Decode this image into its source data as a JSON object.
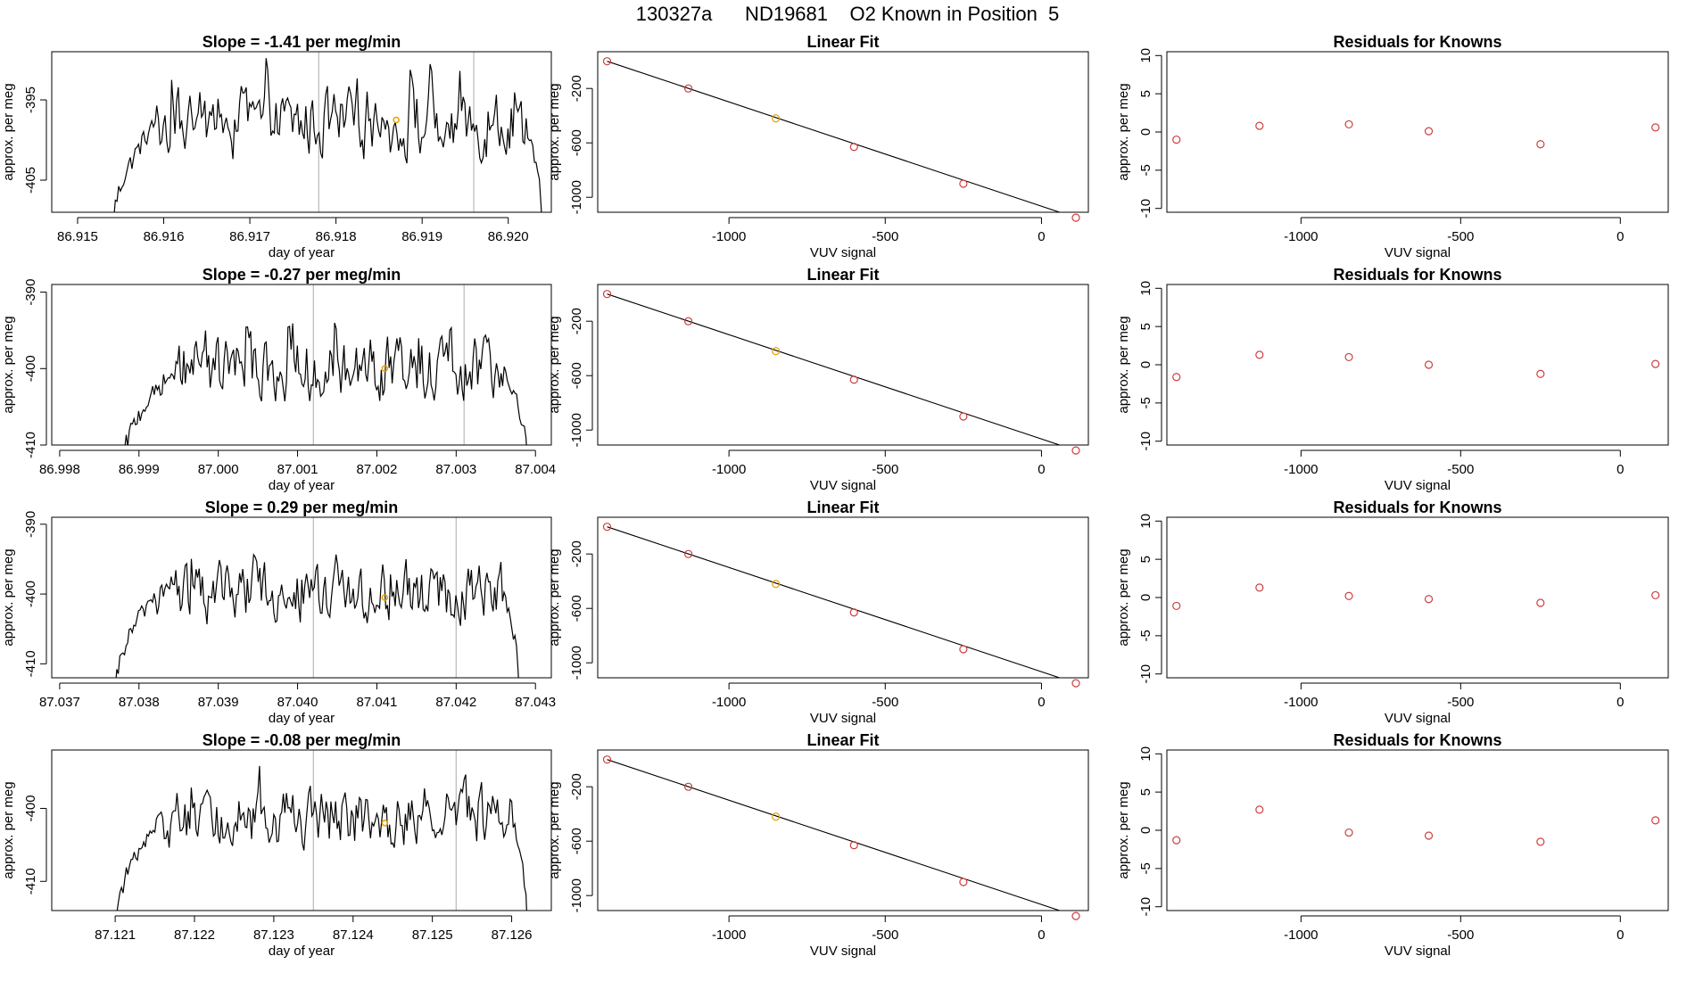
{
  "title": "130327a      ND19681    O2 Known in Position  5",
  "colors": {
    "trace": "#000000",
    "marker_line": "#bfbfbf",
    "current_point": "#e69f00",
    "fit_point": "#cd3e3e",
    "fit_line": "#000000"
  },
  "chart_data": [
    {
      "type": "line",
      "row": 1,
      "title": "Slope =  -1.41  per meg/min",
      "xlabel": "day of year",
      "ylabel": "approx. per meg",
      "xlim": [
        86.9147,
        86.9205
      ],
      "ylim": [
        -409,
        -389
      ],
      "xticks": [
        86.915,
        86.916,
        86.917,
        86.918,
        86.919,
        86.92
      ],
      "xtick_labels": [
        "86.915",
        "86.916",
        "86.917",
        "86.918",
        "86.919",
        "86.920"
      ],
      "yticks": [
        -405,
        -395
      ],
      "ytick_labels": [
        "-405",
        "-395"
      ],
      "x_start": 86.9154,
      "x_end": 86.9204,
      "baseline": -398,
      "plateau_start": 86.9159,
      "plateau_end": 86.9202,
      "marker_lines": [
        86.9178,
        86.9196
      ],
      "highlight": {
        "x": 86.9187,
        "y": -397.5
      }
    },
    {
      "type": "scatter",
      "row": 1,
      "title": "Linear Fit",
      "xlabel": "VUV signal",
      "ylabel": "approx. per meg",
      "xlim": [
        -1420,
        150
      ],
      "ylim": [
        -1110,
        70
      ],
      "xticks": [
        -1000,
        -500,
        0
      ],
      "xtick_labels": [
        "-1000",
        "-500",
        "0"
      ],
      "yticks": [
        -1000,
        -600,
        -200
      ],
      "ytick_labels": [
        "-1000",
        "-600",
        "-200"
      ],
      "points": [
        [
          -1390,
          0
        ],
        [
          -1130,
          -200
        ],
        [
          -850,
          -420
        ],
        [
          -600,
          -630
        ],
        [
          -250,
          -900
        ],
        [
          110,
          -1150
        ]
      ],
      "highlight_index": 2,
      "fit": [
        [
          -1390,
          0
        ],
        [
          110,
          -1150
        ]
      ]
    },
    {
      "type": "scatter",
      "row": 1,
      "title": "Residuals for Knowns",
      "xlabel": "VUV signal",
      "ylabel": "approx. per meg",
      "xlim": [
        -1420,
        150
      ],
      "ylim": [
        -10.5,
        10.5
      ],
      "xticks": [
        -1000,
        -500,
        0
      ],
      "xtick_labels": [
        "-1000",
        "-500",
        "0"
      ],
      "yticks": [
        -10,
        -5,
        0,
        5,
        10
      ],
      "ytick_labels": [
        "-10",
        "-5",
        "0",
        "5",
        "10"
      ],
      "points": [
        [
          -1390,
          -1.0
        ],
        [
          -1130,
          0.8
        ],
        [
          -850,
          1.0
        ],
        [
          -600,
          0.1
        ],
        [
          -250,
          -1.6
        ],
        [
          110,
          0.6
        ]
      ]
    },
    {
      "type": "line",
      "row": 2,
      "title": "Slope =  -0.27  per meg/min",
      "xlabel": "day of year",
      "ylabel": "approx. per meg",
      "xlim": [
        86.9979,
        87.0042
      ],
      "ylim": [
        -410,
        -389
      ],
      "xticks": [
        86.998,
        86.999,
        87.0,
        87.001,
        87.002,
        87.003,
        87.004
      ],
      "xtick_labels": [
        "86.998",
        "86.999",
        "87.000",
        "87.001",
        "87.002",
        "87.003",
        "87.004"
      ],
      "yticks": [
        -410,
        -400,
        -390
      ],
      "ytick_labels": [
        "-410",
        "-400",
        "-390"
      ],
      "x_start": 86.9988,
      "x_end": 87.0039,
      "baseline": -400,
      "plateau_start": 86.9995,
      "plateau_end": 87.0036,
      "marker_lines": [
        87.0012,
        87.0031
      ],
      "highlight": {
        "x": 87.0021,
        "y": -400
      }
    },
    {
      "type": "scatter",
      "row": 2,
      "title": "Linear Fit",
      "xlabel": "VUV signal",
      "ylabel": "approx. per meg",
      "xlim": [
        -1420,
        150
      ],
      "ylim": [
        -1110,
        70
      ],
      "xticks": [
        -1000,
        -500,
        0
      ],
      "xtick_labels": [
        "-1000",
        "-500",
        "0"
      ],
      "yticks": [
        -1000,
        -600,
        -200
      ],
      "ytick_labels": [
        "-1000",
        "-600",
        "-200"
      ],
      "points": [
        [
          -1390,
          0
        ],
        [
          -1130,
          -200
        ],
        [
          -850,
          -420
        ],
        [
          -600,
          -630
        ],
        [
          -250,
          -900
        ],
        [
          110,
          -1150
        ]
      ],
      "highlight_index": 2,
      "fit": [
        [
          -1390,
          0
        ],
        [
          110,
          -1150
        ]
      ]
    },
    {
      "type": "scatter",
      "row": 2,
      "title": "Residuals for Knowns",
      "xlabel": "VUV signal",
      "ylabel": "approx. per meg",
      "xlim": [
        -1420,
        150
      ],
      "ylim": [
        -10.5,
        10.5
      ],
      "xticks": [
        -1000,
        -500,
        0
      ],
      "xtick_labels": [
        "-1000",
        "-500",
        "0"
      ],
      "yticks": [
        -10,
        -5,
        0,
        5,
        10
      ],
      "ytick_labels": [
        "-10",
        "-5",
        "0",
        "5",
        "10"
      ],
      "points": [
        [
          -1390,
          -1.6
        ],
        [
          -1130,
          1.3
        ],
        [
          -850,
          1.0
        ],
        [
          -600,
          0.0
        ],
        [
          -250,
          -1.2
        ],
        [
          110,
          0.1
        ]
      ]
    },
    {
      "type": "line",
      "row": 3,
      "title": "Slope =  0.29  per meg/min",
      "xlabel": "day of year",
      "ylabel": "approx. per meg",
      "xlim": [
        87.0369,
        87.0432
      ],
      "ylim": [
        -412,
        -389
      ],
      "xticks": [
        87.037,
        87.038,
        87.039,
        87.04,
        87.041,
        87.042,
        87.043
      ],
      "xtick_labels": [
        "87.037",
        "87.038",
        "87.039",
        "87.040",
        "87.041",
        "87.042",
        "87.043"
      ],
      "yticks": [
        -410,
        -400,
        -390
      ],
      "ytick_labels": [
        "-410",
        "-400",
        "-390"
      ],
      "x_start": 87.0377,
      "x_end": 87.0428,
      "baseline": -400,
      "plateau_start": 87.0382,
      "plateau_end": 87.0426,
      "marker_lines": [
        87.0402,
        87.042
      ],
      "highlight": {
        "x": 87.0411,
        "y": -400.5
      }
    },
    {
      "type": "scatter",
      "row": 3,
      "title": "Linear Fit",
      "xlabel": "VUV signal",
      "ylabel": "approx. per meg",
      "xlim": [
        -1420,
        150
      ],
      "ylim": [
        -1110,
        70
      ],
      "xticks": [
        -1000,
        -500,
        0
      ],
      "xtick_labels": [
        "-1000",
        "-500",
        "0"
      ],
      "yticks": [
        -1000,
        -600,
        -200
      ],
      "ytick_labels": [
        "-1000",
        "-600",
        "-200"
      ],
      "points": [
        [
          -1390,
          0
        ],
        [
          -1130,
          -200
        ],
        [
          -850,
          -420
        ],
        [
          -600,
          -630
        ],
        [
          -250,
          -900
        ],
        [
          110,
          -1150
        ]
      ],
      "highlight_index": 2,
      "fit": [
        [
          -1390,
          0
        ],
        [
          110,
          -1150
        ]
      ]
    },
    {
      "type": "scatter",
      "row": 3,
      "title": "Residuals for Knowns",
      "xlabel": "VUV signal",
      "ylabel": "approx. per meg",
      "xlim": [
        -1420,
        150
      ],
      "ylim": [
        -10.5,
        10.5
      ],
      "xticks": [
        -1000,
        -500,
        0
      ],
      "xtick_labels": [
        "-1000",
        "-500",
        "0"
      ],
      "yticks": [
        -10,
        -5,
        0,
        5,
        10
      ],
      "ytick_labels": [
        "-10",
        "-5",
        "0",
        "5",
        "10"
      ],
      "points": [
        [
          -1390,
          -1.1
        ],
        [
          -1130,
          1.3
        ],
        [
          -850,
          0.2
        ],
        [
          -600,
          -0.2
        ],
        [
          -250,
          -0.7
        ],
        [
          110,
          0.3
        ]
      ]
    },
    {
      "type": "line",
      "row": 4,
      "title": "Slope =  -0.08  per meg/min",
      "xlabel": "day of year",
      "ylabel": "approx. per meg",
      "xlim": [
        87.1202,
        87.1265
      ],
      "ylim": [
        -414,
        -392
      ],
      "xticks": [
        87.121,
        87.122,
        87.123,
        87.124,
        87.125,
        87.126
      ],
      "xtick_labels": [
        "87.121",
        "87.122",
        "87.123",
        "87.124",
        "87.125",
        "87.126"
      ],
      "yticks": [
        -410,
        -400
      ],
      "ytick_labels": [
        "-410",
        "-400"
      ],
      "x_start": 87.121,
      "x_end": 87.1262,
      "baseline": -401,
      "plateau_start": 87.1216,
      "plateau_end": 87.126,
      "marker_lines": [
        87.1235,
        87.1253
      ],
      "highlight": {
        "x": 87.1244,
        "y": -402
      }
    },
    {
      "type": "scatter",
      "row": 4,
      "title": "Linear Fit",
      "xlabel": "VUV signal",
      "ylabel": "approx. per meg",
      "xlim": [
        -1420,
        150
      ],
      "ylim": [
        -1110,
        70
      ],
      "xticks": [
        -1000,
        -500,
        0
      ],
      "xtick_labels": [
        "-1000",
        "-500",
        "0"
      ],
      "yticks": [
        -1000,
        -600,
        -200
      ],
      "ytick_labels": [
        "-1000",
        "-600",
        "-200"
      ],
      "points": [
        [
          -1390,
          0
        ],
        [
          -1130,
          -200
        ],
        [
          -850,
          -420
        ],
        [
          -600,
          -630
        ],
        [
          -250,
          -900
        ],
        [
          110,
          -1150
        ]
      ],
      "highlight_index": 2,
      "fit": [
        [
          -1390,
          0
        ],
        [
          110,
          -1150
        ]
      ]
    },
    {
      "type": "scatter",
      "row": 4,
      "title": "Residuals for Knowns",
      "xlabel": "VUV signal",
      "ylabel": "approx. per meg",
      "xlim": [
        -1420,
        150
      ],
      "ylim": [
        -10.5,
        10.5
      ],
      "xticks": [
        -1000,
        -500,
        0
      ],
      "xtick_labels": [
        "-1000",
        "-500",
        "0"
      ],
      "yticks": [
        -10,
        -5,
        0,
        5,
        10
      ],
      "ytick_labels": [
        "-10",
        "-5",
        "0",
        "5",
        "10"
      ],
      "points": [
        [
          -1390,
          -1.3
        ],
        [
          -1130,
          2.7
        ],
        [
          -850,
          -0.3
        ],
        [
          -600,
          -0.7
        ],
        [
          -250,
          -1.5
        ],
        [
          110,
          1.3
        ]
      ]
    }
  ]
}
